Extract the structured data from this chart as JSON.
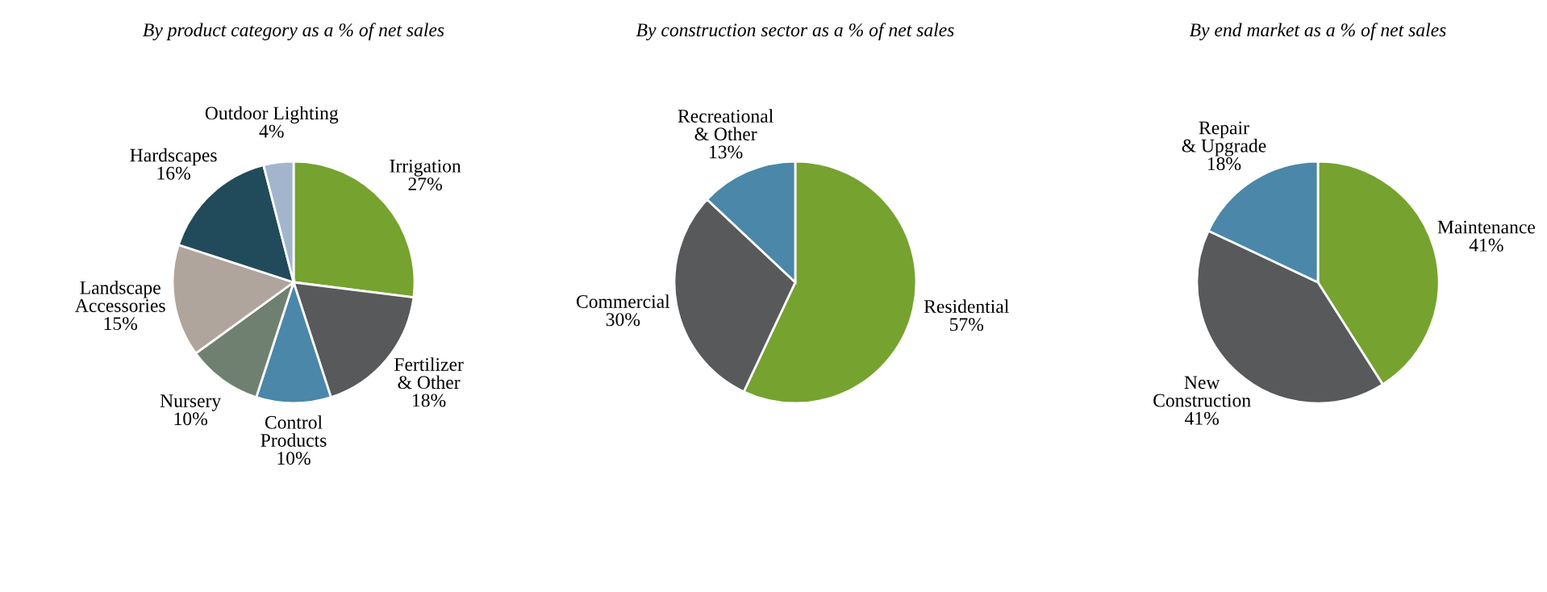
{
  "chart_data": [
    {
      "type": "pie",
      "title": "By product category as a % of net sales",
      "categories": [
        "Irrigation",
        "Fertilizer\n& Other",
        "Control\nProducts",
        "Nursery",
        "Landscape\nAccessories",
        "Hardscapes",
        "Outdoor Lighting"
      ],
      "values": [
        27,
        18,
        10,
        10,
        15,
        16,
        4
      ],
      "value_labels": [
        "27%",
        "18%",
        "10%",
        "10%",
        "15%",
        "16%",
        "4%"
      ],
      "colors": [
        "#76a22f",
        "#58595b",
        "#4a87a8",
        "#6f8070",
        "#b0a59d",
        "#214b5a",
        "#a3b5cc"
      ]
    },
    {
      "type": "pie",
      "title": "By construction sector as a % of net sales",
      "categories": [
        "Residential",
        "Commercial",
        "Recreational\n& Other"
      ],
      "values": [
        57,
        30,
        13
      ],
      "value_labels": [
        "57%",
        "30%",
        "13%"
      ],
      "colors": [
        "#76a22f",
        "#58595b",
        "#4a87a8"
      ]
    },
    {
      "type": "pie",
      "title": "By end market as a % of net sales",
      "categories": [
        "Maintenance",
        "New\nConstruction",
        "Repair\n& Upgrade"
      ],
      "values": [
        41,
        41,
        18
      ],
      "value_labels": [
        "41%",
        "41%",
        "18%"
      ],
      "colors": [
        "#76a22f",
        "#58595b",
        "#4a87a8"
      ]
    }
  ]
}
